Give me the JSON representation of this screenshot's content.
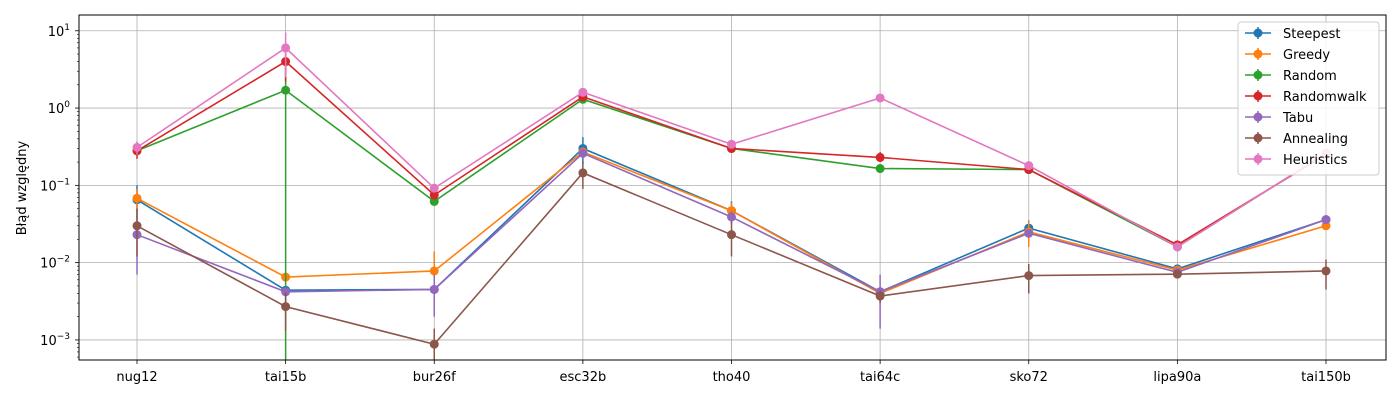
{
  "chart_data": {
    "type": "line",
    "ylabel": "Błąd względny",
    "yscale": "log",
    "ylim": [
      0.00055,
      16
    ],
    "grid": true,
    "legend_position": "upper right",
    "y_ticks": [
      {
        "value": 0.001,
        "base": "10",
        "exp": "−3"
      },
      {
        "value": 0.01,
        "base": "10",
        "exp": "−2"
      },
      {
        "value": 0.1,
        "base": "10",
        "exp": "−1"
      },
      {
        "value": 1,
        "base": "10",
        "exp": "0"
      },
      {
        "value": 10,
        "base": "10",
        "exp": "1"
      }
    ],
    "categories": [
      "nug12",
      "tai15b",
      "bur26f",
      "esc32b",
      "tho40",
      "tai64c",
      "sko72",
      "lipa90a",
      "tai150b"
    ],
    "series": [
      {
        "name": "Steepest",
        "color": "#1f77b4",
        "values": [
          0.065,
          0.0044,
          0.0045,
          0.3,
          0.047,
          0.0042,
          0.028,
          0.0083,
          0.036
        ],
        "err_low": [
          0.038,
          0.0042,
          0.0043,
          0.19,
          0.033,
          0.004,
          0.022,
          0.0079,
          0.034
        ],
        "err_high": [
          0.1,
          0.0046,
          0.0047,
          0.42,
          0.062,
          0.0044,
          0.035,
          0.0087,
          0.038
        ]
      },
      {
        "name": "Greedy",
        "color": "#ff7f0e",
        "values": [
          0.068,
          0.0065,
          0.0078,
          0.27,
          0.047,
          0.004,
          0.025,
          0.008,
          0.03
        ],
        "err_low": [
          0.045,
          0.0062,
          0.0045,
          0.23,
          0.035,
          0.0038,
          0.016,
          0.0077,
          0.028
        ],
        "err_high": [
          0.09,
          0.0068,
          0.014,
          0.31,
          0.06,
          0.0042,
          0.034,
          0.0083,
          0.032
        ]
      },
      {
        "name": "Random",
        "color": "#2ca02c",
        "values": [
          0.28,
          1.7,
          0.062,
          1.3,
          0.3,
          0.165,
          0.16,
          0.016,
          0.26
        ],
        "err_low": [
          0.26,
          0.0004,
          0.058,
          1.2,
          0.29,
          0.155,
          0.15,
          0.015,
          0.25
        ],
        "err_high": [
          0.3,
          3.4,
          0.066,
          1.4,
          0.31,
          0.175,
          0.17,
          0.017,
          0.27
        ]
      },
      {
        "name": "Randomwalk",
        "color": "#d62728",
        "values": [
          0.28,
          4.0,
          0.075,
          1.4,
          0.3,
          0.23,
          0.16,
          0.017,
          0.25
        ],
        "err_low": [
          0.22,
          2.2,
          0.068,
          1.3,
          0.28,
          0.2,
          0.15,
          0.016,
          0.24
        ],
        "err_high": [
          0.34,
          5.8,
          0.082,
          1.5,
          0.32,
          0.27,
          0.17,
          0.018,
          0.26
        ]
      },
      {
        "name": "Tabu",
        "color": "#9467bd",
        "values": [
          0.023,
          0.0042,
          0.0045,
          0.26,
          0.039,
          0.0042,
          0.024,
          0.0075,
          0.036
        ],
        "err_low": [
          0.007,
          0.004,
          0.002,
          0.22,
          0.032,
          0.0014,
          0.021,
          0.0072,
          0.034
        ],
        "err_high": [
          0.04,
          0.0044,
          0.007,
          0.3,
          0.046,
          0.007,
          0.027,
          0.0078,
          0.038
        ]
      },
      {
        "name": "Annealing",
        "color": "#8c564b",
        "values": [
          0.03,
          0.0027,
          0.00088,
          0.145,
          0.023,
          0.0037,
          0.0068,
          0.0071,
          0.0078
        ],
        "err_low": [
          0.012,
          0.0013,
          0.0004,
          0.09,
          0.012,
          0.003,
          0.004,
          0.0068,
          0.0045
        ],
        "err_high": [
          0.05,
          0.0041,
          0.0014,
          0.2,
          0.034,
          0.0044,
          0.0096,
          0.0074,
          0.011
        ]
      },
      {
        "name": "Heuristics",
        "color": "#e377c2",
        "values": [
          0.31,
          6.0,
          0.092,
          1.6,
          0.34,
          1.35,
          0.18,
          0.016,
          0.26
        ],
        "err_low": [
          0.25,
          2.5,
          0.085,
          1.5,
          0.32,
          1.25,
          0.17,
          0.015,
          0.25
        ],
        "err_high": [
          0.37,
          9.5,
          0.1,
          1.7,
          0.36,
          1.45,
          0.19,
          0.017,
          0.27
        ]
      }
    ]
  }
}
